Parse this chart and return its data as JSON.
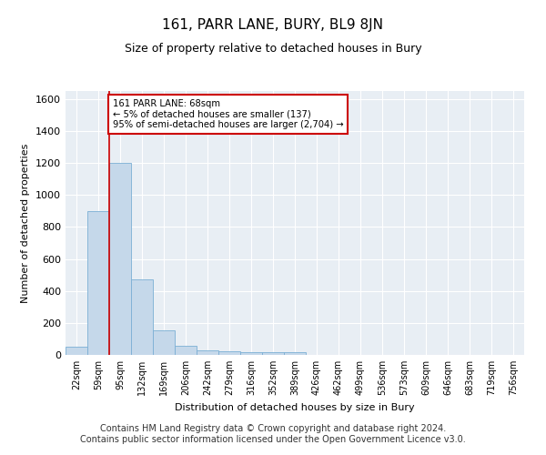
{
  "title": "161, PARR LANE, BURY, BL9 8JN",
  "subtitle": "Size of property relative to detached houses in Bury",
  "xlabel": "Distribution of detached houses by size in Bury",
  "ylabel": "Number of detached properties",
  "footer_line1": "Contains HM Land Registry data © Crown copyright and database right 2024.",
  "footer_line2": "Contains public sector information licensed under the Open Government Licence v3.0.",
  "annotation_line1": "161 PARR LANE: 68sqm",
  "annotation_line2": "← 5% of detached houses are smaller (137)",
  "annotation_line3": "95% of semi-detached houses are larger (2,704) →",
  "bar_color": "#c5d8ea",
  "bar_edge_color": "#7bafd4",
  "red_line_color": "#cc0000",
  "annotation_box_edgecolor": "#cc0000",
  "plot_bg_color": "#e8eef4",
  "grid_color": "#ffffff",
  "categories": [
    "22sqm",
    "59sqm",
    "95sqm",
    "132sqm",
    "169sqm",
    "206sqm",
    "242sqm",
    "279sqm",
    "316sqm",
    "352sqm",
    "389sqm",
    "426sqm",
    "462sqm",
    "499sqm",
    "536sqm",
    "573sqm",
    "609sqm",
    "646sqm",
    "683sqm",
    "719sqm",
    "756sqm"
  ],
  "values": [
    50,
    900,
    1200,
    470,
    155,
    55,
    30,
    20,
    18,
    18,
    18,
    0,
    0,
    0,
    0,
    0,
    0,
    0,
    0,
    0,
    0
  ],
  "red_line_x": 1.0,
  "ylim": [
    0,
    1650
  ],
  "yticks": [
    0,
    200,
    400,
    600,
    800,
    1000,
    1200,
    1400,
    1600
  ],
  "title_fontsize": 11,
  "subtitle_fontsize": 9,
  "ylabel_fontsize": 8,
  "xlabel_fontsize": 8,
  "tick_fontsize": 8,
  "footer_fontsize": 7
}
